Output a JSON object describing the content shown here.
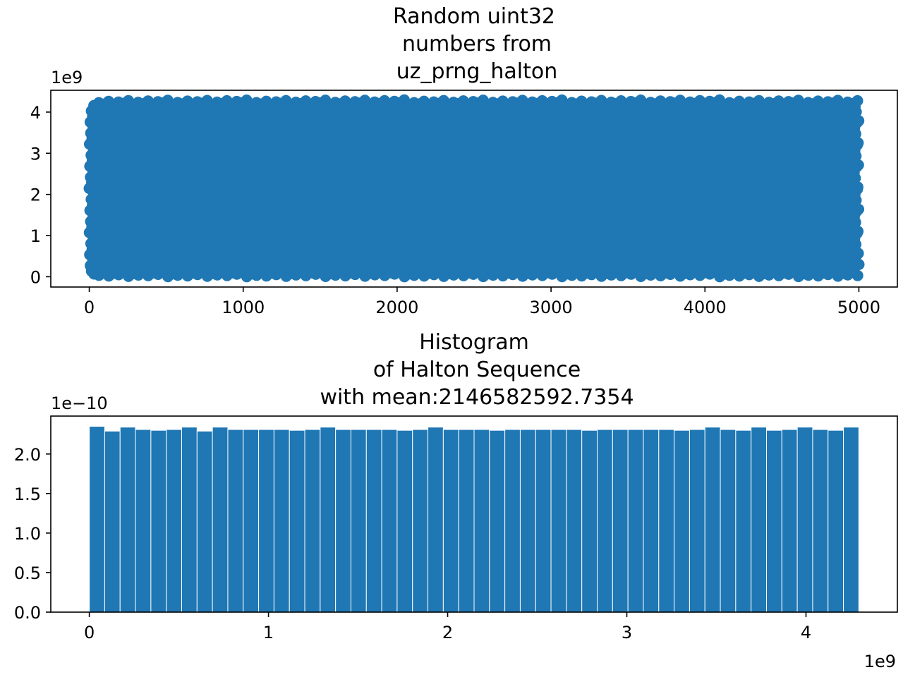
{
  "colors": {
    "series": "#1f77b4",
    "axes": "#000000",
    "bar_edge": "#ffffff"
  },
  "chart_data": [
    {
      "type": "scatter",
      "title_lines": [
        "Random uint32",
        "numbers from",
        "uz_prng_halton"
      ],
      "xlabel": "",
      "ylabel": "",
      "xlim": [
        -250,
        5250
      ],
      "ylim": [
        -250000000,
        4530000000
      ],
      "y_offset_text": "1e9",
      "x_offset_text": "",
      "x_ticks": [
        {
          "value": 0,
          "label": "0"
        },
        {
          "value": 1000,
          "label": "1000"
        },
        {
          "value": 2000,
          "label": "2000"
        },
        {
          "value": 3000,
          "label": "3000"
        },
        {
          "value": 4000,
          "label": "4000"
        },
        {
          "value": 5000,
          "label": "5000"
        }
      ],
      "y_ticks": [
        {
          "value": 0,
          "label": "0"
        },
        {
          "value": 1000000000,
          "label": "1"
        },
        {
          "value": 2000000000,
          "label": "2"
        },
        {
          "value": 3000000000,
          "label": "3"
        },
        {
          "value": 4000000000,
          "label": "4"
        }
      ],
      "series": [
        {
          "generator": "halton",
          "count": 5000,
          "x_range": [
            0,
            5000
          ],
          "y_range": [
            0,
            4294967295
          ]
        }
      ],
      "grid": false
    },
    {
      "type": "bar",
      "title_lines": [
        "Histogram",
        "of Halton Sequence",
        "with mean:2146582592.7354"
      ],
      "xlabel": "",
      "ylabel": "",
      "xlim": [
        -215000000,
        4510000000
      ],
      "ylim": [
        0,
        2.48e-10
      ],
      "y_offset_text": "1e−10",
      "x_offset_text": "1e9",
      "x_ticks": [
        {
          "value": 0,
          "label": "0"
        },
        {
          "value": 1000000000,
          "label": "1"
        },
        {
          "value": 2000000000,
          "label": "2"
        },
        {
          "value": 3000000000,
          "label": "3"
        },
        {
          "value": 4000000000,
          "label": "4"
        }
      ],
      "y_ticks": [
        {
          "value": 0,
          "label": "0.0"
        },
        {
          "value": 5e-11,
          "label": "0.5"
        },
        {
          "value": 1e-10,
          "label": "1.0"
        },
        {
          "value": 1.5e-10,
          "label": "1.5"
        },
        {
          "value": 2e-10,
          "label": "2.0"
        }
      ],
      "bin_range": [
        0,
        4294967295
      ],
      "values": [
        2.35,
        2.29,
        2.34,
        2.31,
        2.3,
        2.31,
        2.34,
        2.29,
        2.34,
        2.31,
        2.31,
        2.31,
        2.31,
        2.3,
        2.31,
        2.34,
        2.31,
        2.31,
        2.31,
        2.31,
        2.3,
        2.31,
        2.34,
        2.31,
        2.31,
        2.31,
        2.3,
        2.31,
        2.31,
        2.31,
        2.31,
        2.31,
        2.3,
        2.31,
        2.31,
        2.31,
        2.31,
        2.31,
        2.3,
        2.31,
        2.34,
        2.31,
        2.3,
        2.34,
        2.3,
        2.31,
        2.34,
        2.31,
        2.3,
        2.34
      ],
      "values_scale": 1e-10,
      "grid": false
    }
  ]
}
